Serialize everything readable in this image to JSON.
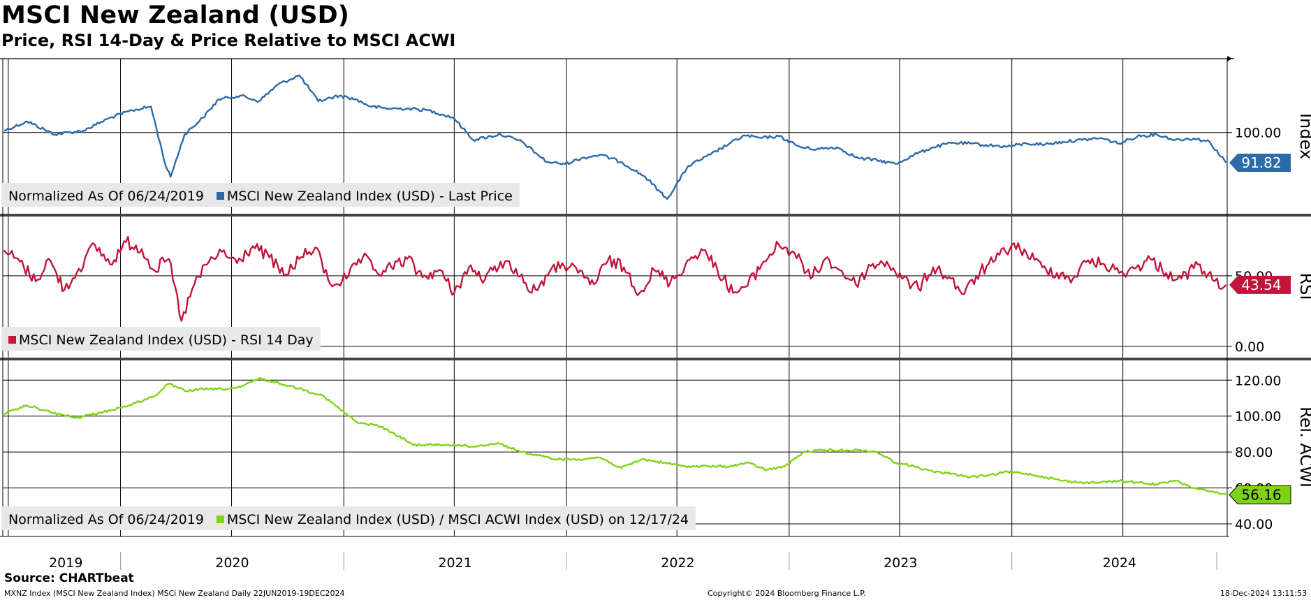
{
  "header": {
    "title": "MSCI New Zealand (USD)",
    "subtitle": "Price, RSI 14-Day & Price Relative to MSCI ACWI"
  },
  "footer": {
    "source": "Source: CHARTbeat",
    "left": "MXNZ Index (MSCI New Zealand Index) MSCi New Zealand  Daily 22JUN2019-19DEC2024",
    "middle": "Copyright© 2024 Bloomberg Finance L.P.",
    "right": "18-Dec-2024 13:11:53"
  },
  "legends": {
    "price": {
      "note": "Normalized As Of 06/24/2019",
      "series": "MSCI New Zealand Index (USD) - Last Price"
    },
    "rsi": {
      "series": "MSCI New Zealand Index (USD) - RSI 14 Day"
    },
    "rel": {
      "note": "Normalized As Of 06/24/2019",
      "series": "MSCI New Zealand Index (USD) / MSCI ACWI Index (USD) on 12/17/24"
    }
  },
  "colors": {
    "price": "#2d6aa8",
    "rsi": "#c0163a",
    "rel": "#7fd316",
    "grid": "#000000"
  },
  "chart_data": [
    {
      "type": "line",
      "panel": "price",
      "axis_title": "Index",
      "x_labels": [
        "2019",
        "2020",
        "2021",
        "2022",
        "2023",
        "2024"
      ],
      "y_ticks": [
        100
      ],
      "y_tick_labels": [
        "100.00"
      ],
      "last_value_label": "91.82",
      "series": [
        {
          "name": "MSCI New Zealand Index (USD) - Last Price",
          "x": [
            "2019-06-24",
            "2019-08-01",
            "2019-09-15",
            "2019-11-01",
            "2019-12-15",
            "2020-01-20",
            "2020-02-20",
            "2020-03-15",
            "2020-03-23",
            "2020-04-15",
            "2020-05-15",
            "2020-06-10",
            "2020-07-15",
            "2020-08-15",
            "2020-09-15",
            "2020-10-20",
            "2020-11-20",
            "2020-12-25",
            "2021-01-20",
            "2021-02-15",
            "2021-03-15",
            "2021-04-15",
            "2021-05-20",
            "2021-06-30",
            "2021-08-01",
            "2021-09-15",
            "2021-10-20",
            "2021-11-15",
            "2021-11-30",
            "2021-12-30",
            "2022-01-25",
            "2022-02-25",
            "2022-04-01",
            "2022-05-10",
            "2022-06-15",
            "2022-07-20",
            "2022-08-25",
            "2022-09-25",
            "2022-10-20",
            "2022-11-15",
            "2022-12-15",
            "2023-01-20",
            "2023-02-15",
            "2023-03-20",
            "2023-04-25",
            "2023-05-25",
            "2023-06-25",
            "2023-07-25",
            "2023-08-25",
            "2023-09-25",
            "2023-10-25",
            "2023-11-25",
            "2023-12-25",
            "2024-01-25",
            "2024-02-25",
            "2024-03-25",
            "2024-04-25",
            "2024-05-25",
            "2024-06-25",
            "2024-07-25",
            "2024-08-25",
            "2024-09-25",
            "2024-10-25",
            "2024-11-20",
            "2024-12-17"
          ],
          "values": [
            100.5,
            103,
            99.5,
            100.5,
            104,
            106,
            107,
            91,
            88,
            99.5,
            104,
            109,
            110,
            108.5,
            113,
            115.5,
            108.5,
            110,
            109,
            107,
            106.5,
            106.5,
            106,
            104,
            98,
            99.5,
            97.5,
            94,
            92,
            91.5,
            93,
            94,
            92,
            88,
            82,
            91,
            94,
            97,
            99.2,
            98.5,
            99,
            96,
            95.5,
            96,
            93,
            92.5,
            91.5,
            94,
            96,
            97.2,
            97,
            96.5,
            96.2,
            97,
            96.8,
            97.5,
            98,
            98.5,
            97,
            99,
            99.5,
            98,
            98.4,
            97.5,
            91.82
          ]
        }
      ]
    },
    {
      "type": "line",
      "panel": "rsi",
      "axis_title": "RSI",
      "y_ticks": [
        0,
        50
      ],
      "y_tick_labels": [
        "0.00",
        "50.00"
      ],
      "last_value_label": "43.54",
      "series": [
        {
          "name": "MSCI New Zealand Index (USD) - RSI 14 Day",
          "x": [
            "2019-06-24",
            "2019-07-20",
            "2019-08-15",
            "2019-09-05",
            "2019-10-01",
            "2019-10-25",
            "2019-11-20",
            "2019-12-15",
            "2020-01-10",
            "2020-02-05",
            "2020-02-25",
            "2020-03-20",
            "2020-04-10",
            "2020-05-01",
            "2020-05-25",
            "2020-06-15",
            "2020-07-10",
            "2020-08-05",
            "2020-09-01",
            "2020-09-25",
            "2020-10-20",
            "2020-11-15",
            "2020-12-10",
            "2021-01-05",
            "2021-02-01",
            "2021-02-25",
            "2021-03-20",
            "2021-04-15",
            "2021-05-10",
            "2021-06-05",
            "2021-07-01",
            "2021-07-25",
            "2021-08-20",
            "2021-09-15",
            "2021-10-10",
            "2021-11-05",
            "2021-12-01",
            "2021-12-25",
            "2022-01-20",
            "2022-02-15",
            "2022-03-10",
            "2022-04-05",
            "2022-05-01",
            "2022-05-25",
            "2022-06-20",
            "2022-07-15",
            "2022-08-10",
            "2022-09-05",
            "2022-10-01",
            "2022-10-25",
            "2022-11-20",
            "2022-12-15",
            "2023-01-10",
            "2023-02-05",
            "2023-03-01",
            "2023-03-25",
            "2023-04-20",
            "2023-05-15",
            "2023-06-10",
            "2023-07-05",
            "2023-08-01",
            "2023-08-25",
            "2023-09-20",
            "2023-10-15",
            "2023-11-10",
            "2023-12-05",
            "2024-01-01",
            "2024-01-25",
            "2024-02-20",
            "2024-03-15",
            "2024-04-10",
            "2024-05-05",
            "2024-06-01",
            "2024-06-25",
            "2024-07-20",
            "2024-08-15",
            "2024-09-10",
            "2024-10-05",
            "2024-11-01",
            "2024-11-25",
            "2024-12-17"
          ],
          "values": [
            68,
            60,
            46,
            62,
            40,
            55,
            72,
            58,
            74,
            69,
            54,
            62,
            18,
            44,
            60,
            67,
            59,
            71,
            63,
            50,
            62,
            70,
            44,
            48,
            63,
            52,
            56,
            62,
            49,
            54,
            38,
            56,
            47,
            60,
            55,
            38,
            50,
            59,
            52,
            44,
            61,
            56,
            38,
            54,
            45,
            58,
            69,
            55,
            38,
            43,
            60,
            72,
            66,
            48,
            62,
            54,
            44,
            57,
            60,
            48,
            41,
            56,
            49,
            37,
            53,
            61,
            72,
            66,
            56,
            52,
            48,
            61,
            58,
            52,
            55,
            62,
            52,
            48,
            58,
            47,
            43.54
          ]
        }
      ]
    },
    {
      "type": "line",
      "panel": "rel",
      "axis_title": "Rel. ACWI",
      "y_ticks": [
        40,
        60,
        80,
        100,
        120
      ],
      "y_tick_labels": [
        "40.00",
        "60.00",
        "80.00",
        "100.00",
        "120.00"
      ],
      "last_value_label": "56.16",
      "series": [
        {
          "name": "MSCI New Zealand Index (USD) / MSCI ACWI Index (USD) on 12/17/24",
          "x": [
            "2019-06-24",
            "2019-08-01",
            "2019-09-10",
            "2019-10-20",
            "2019-12-01",
            "2020-01-15",
            "2020-02-25",
            "2020-03-20",
            "2020-04-15",
            "2020-05-15",
            "2020-06-15",
            "2020-07-15",
            "2020-08-15",
            "2020-09-20",
            "2020-10-25",
            "2020-11-10",
            "2020-11-25",
            "2020-12-25",
            "2021-01-25",
            "2021-02-25",
            "2021-03-20",
            "2021-04-25",
            "2021-05-25",
            "2021-06-30",
            "2021-08-01",
            "2021-09-10",
            "2021-10-20",
            "2021-11-15",
            "2021-12-15",
            "2022-01-20",
            "2022-02-25",
            "2022-04-01",
            "2022-05-05",
            "2022-06-10",
            "2022-07-15",
            "2022-08-20",
            "2022-09-25",
            "2022-10-25",
            "2022-11-25",
            "2022-12-25",
            "2023-01-25",
            "2023-02-25",
            "2023-03-25",
            "2023-04-25",
            "2023-05-25",
            "2023-06-25",
            "2023-07-25",
            "2023-08-25",
            "2023-09-25",
            "2023-10-25",
            "2023-11-25",
            "2023-12-25",
            "2024-01-25",
            "2024-02-25",
            "2024-03-25",
            "2024-04-25",
            "2024-05-25",
            "2024-06-25",
            "2024-07-25",
            "2024-08-25",
            "2024-09-25",
            "2024-10-25",
            "2024-11-20",
            "2024-12-17"
          ],
          "values": [
            101,
            106,
            102,
            99,
            102,
            106,
            111,
            118,
            114,
            115,
            115,
            116,
            121,
            118,
            115,
            113,
            112,
            104,
            96,
            95,
            91,
            84,
            84,
            84,
            83,
            85,
            80,
            78,
            76,
            76,
            77,
            71,
            76,
            74,
            72,
            72,
            72,
            74,
            70,
            72,
            80,
            81,
            81,
            81,
            80,
            74,
            72,
            69,
            68,
            66,
            67,
            69,
            68,
            66,
            64,
            63,
            63,
            64,
            63,
            62,
            64,
            60,
            58,
            56.16
          ]
        }
      ]
    }
  ]
}
